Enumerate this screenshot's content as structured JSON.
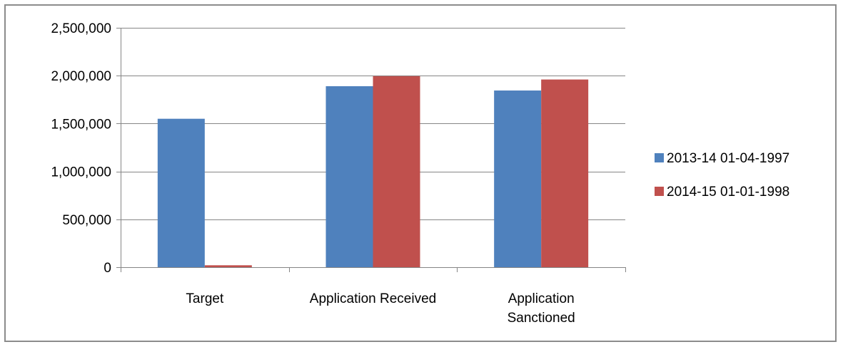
{
  "chart_data": {
    "type": "bar",
    "title": "",
    "xlabel": "",
    "ylabel": "",
    "categories": [
      "Target",
      "Application Received",
      "Application Sanctioned"
    ],
    "category_lines": [
      [
        "Target"
      ],
      [
        "Application Received"
      ],
      [
        "Application",
        "Sanctioned"
      ]
    ],
    "series": [
      {
        "name": "2013-14 01-04-1997",
        "color": "#4f81bd",
        "values": [
          1550000,
          1890000,
          1845000
        ]
      },
      {
        "name": "2014-15 01-01-1998",
        "color": "#c0504d",
        "values": [
          20000,
          1995000,
          1960000
        ]
      }
    ],
    "ylim": [
      0,
      2500000
    ],
    "yticks": [
      0,
      500000,
      1000000,
      1500000,
      2000000,
      2500000
    ],
    "ytick_labels": [
      "0",
      "500,000",
      "1,000,000",
      "1,500,000",
      "2,000,000",
      "2,500,000"
    ],
    "grid": true,
    "legend_position": "right"
  }
}
